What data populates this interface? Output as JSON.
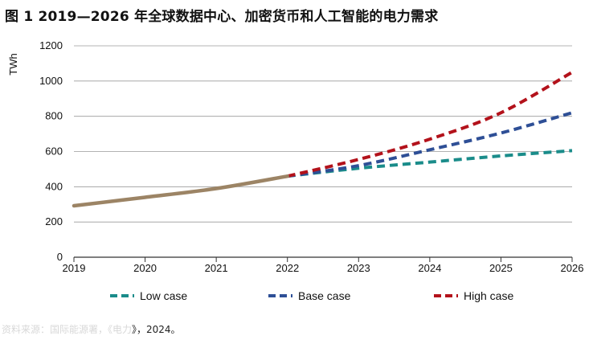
{
  "figure_title": "图 1  2019—2026 年全球数据中心、加密货币和人工智能的电力需求",
  "source_note": {
    "faded": "资料来源：国际能源署，《电力",
    "visible": "》，2024。"
  },
  "colors": {
    "historical": "#9c8465",
    "low": "#1a8c8a",
    "base": "#2e4f96",
    "high": "#b3121b",
    "grid": "#9a9a9a",
    "axis": "#333333"
  },
  "chart_data": {
    "type": "line",
    "ylabel": "TWh",
    "ylim": [
      0,
      1200
    ],
    "yticks": [
      "0",
      "200",
      "400",
      "600",
      "800",
      "1000",
      "1200"
    ],
    "xlim": [
      2019,
      2026
    ],
    "xticks": [
      "2019",
      "2020",
      "2021",
      "2022",
      "2023",
      "2024",
      "2025",
      "2026"
    ],
    "grid": "horizontal",
    "legend_position": "bottom",
    "series": [
      {
        "name": "",
        "style": "solid",
        "colorKey": "historical",
        "points": [
          [
            2019,
            292
          ],
          [
            2020,
            340
          ],
          [
            2021,
            390
          ],
          [
            2022,
            460
          ]
        ]
      },
      {
        "name": "Low case",
        "style": "dashed",
        "colorKey": "low",
        "points": [
          [
            2022,
            460
          ],
          [
            2023,
            505
          ],
          [
            2024,
            540
          ],
          [
            2025,
            575
          ],
          [
            2026,
            605
          ]
        ]
      },
      {
        "name": "Base case",
        "style": "dashed",
        "colorKey": "base",
        "points": [
          [
            2022,
            460
          ],
          [
            2023,
            520
          ],
          [
            2024,
            610
          ],
          [
            2025,
            705
          ],
          [
            2026,
            820
          ]
        ]
      },
      {
        "name": "High case",
        "style": "dashed",
        "colorKey": "high",
        "points": [
          [
            2022,
            460
          ],
          [
            2023,
            555
          ],
          [
            2024,
            670
          ],
          [
            2025,
            820
          ],
          [
            2026,
            1050
          ]
        ]
      }
    ]
  }
}
